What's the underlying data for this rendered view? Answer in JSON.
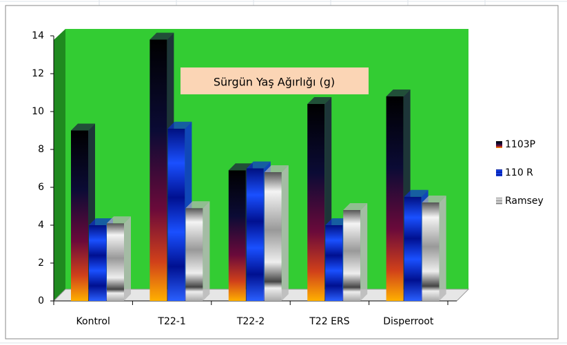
{
  "chart_data": {
    "type": "bar3d",
    "title": "Sürgün Yaş Ağırlığı  (g)",
    "categories": [
      "Kontrol",
      "T22-1",
      "T22-2",
      "T22 ERS",
      "Disperroot"
    ],
    "series": [
      {
        "name": "1103P",
        "color": "#1a1a3a",
        "values": [
          9.0,
          13.8,
          6.9,
          10.4,
          10.8
        ]
      },
      {
        "name": "110 R",
        "color": "#0a2fd0",
        "values": [
          4.0,
          9.1,
          7.0,
          4.0,
          5.5
        ]
      },
      {
        "name": "Ramsey",
        "color": "#b8b8b8",
        "values": [
          4.1,
          4.9,
          6.8,
          4.8,
          5.2
        ]
      }
    ],
    "ylim": [
      0,
      14
    ],
    "yticks": [
      0,
      2,
      4,
      6,
      8,
      10,
      12,
      14
    ],
    "grid": false,
    "legend": "right"
  }
}
